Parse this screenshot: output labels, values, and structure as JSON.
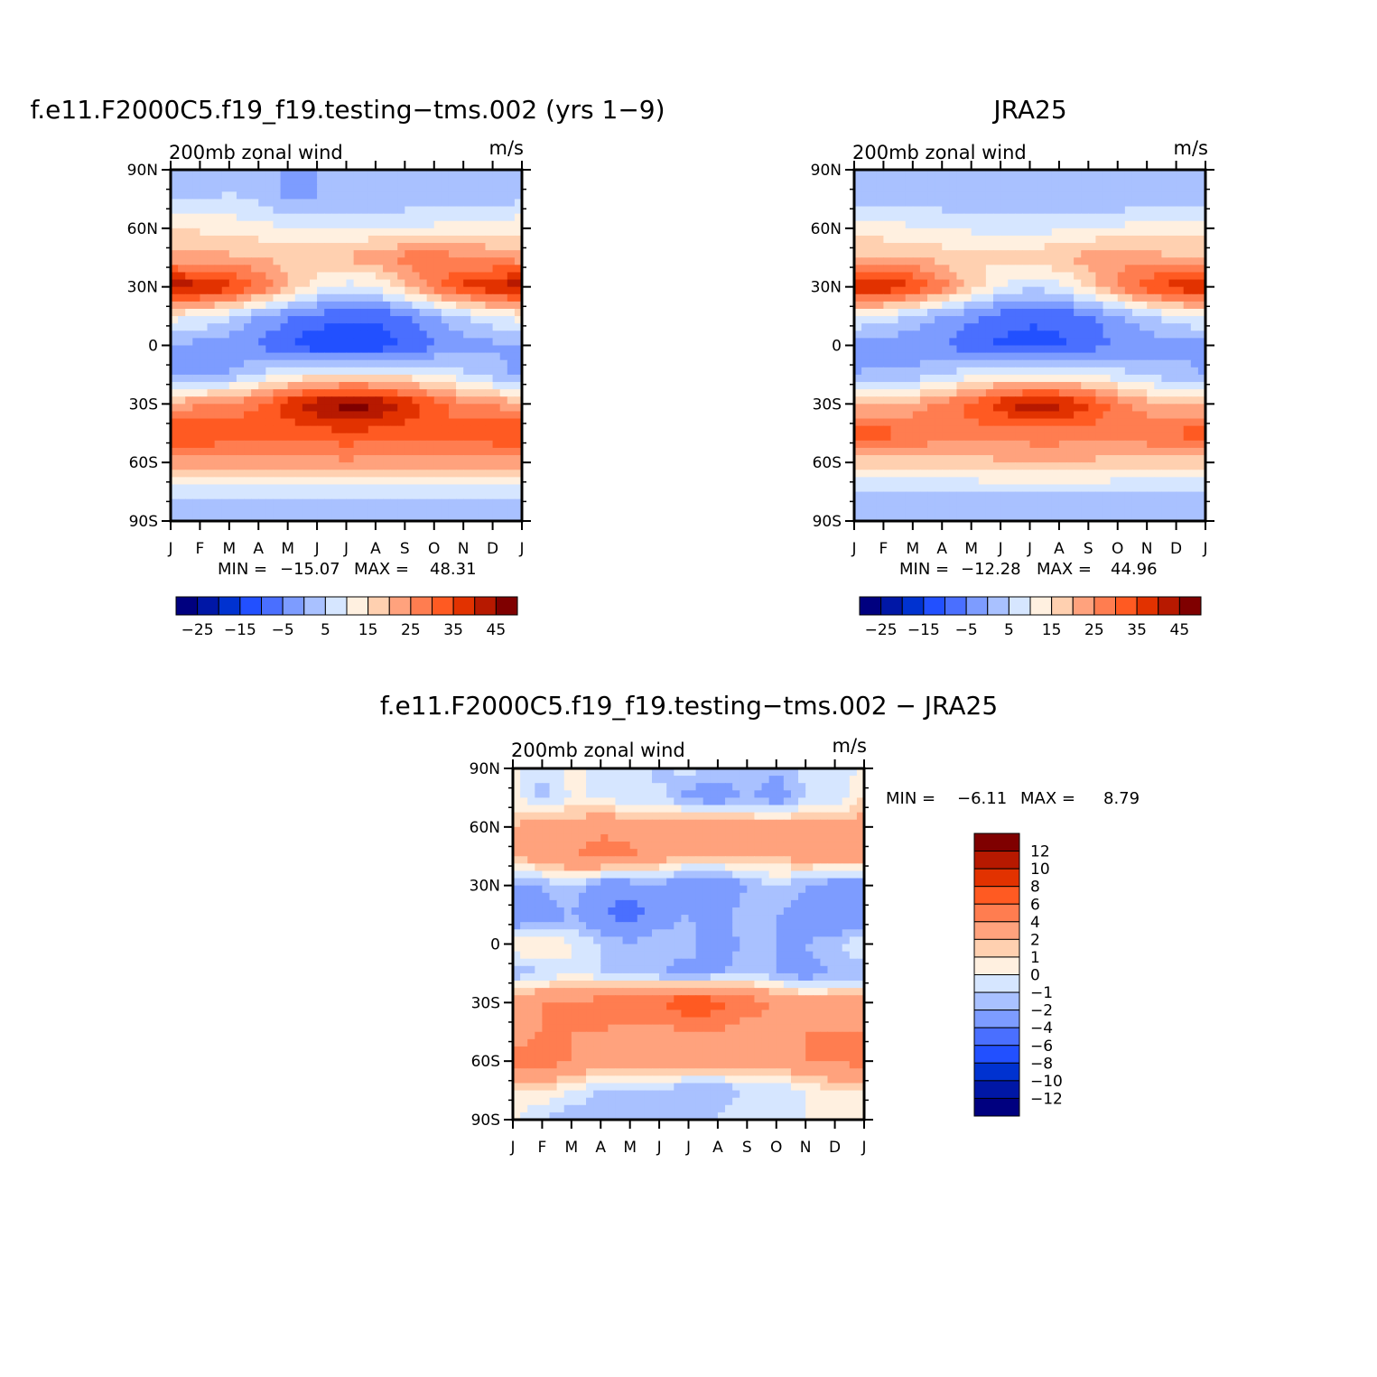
{
  "palette": {
    "diverging": [
      "#00007f",
      "#0017a6",
      "#0032d0",
      "#2250ff",
      "#4a6fff",
      "#7d9cff",
      "#a9c1ff",
      "#d6e6ff",
      "#fff0e0",
      "#ffd0b0",
      "#ffa27d",
      "#ff7d50",
      "#ff5a22",
      "#e23200",
      "#b71900",
      "#7f0000"
    ],
    "frame": "#000000"
  },
  "chart_data": [
    {
      "type": "heatmap",
      "title": "f.e11.F2000C5.f19_f19.testing−tms.002 (yrs 1−9)",
      "left_subtitle": "200mb zonal wind",
      "units": "m/s",
      "x_ticks": [
        "J",
        "F",
        "M",
        "A",
        "M",
        "J",
        "J",
        "A",
        "S",
        "O",
        "N",
        "D",
        "J"
      ],
      "y_ticks": [
        "90N",
        "60N",
        "30N",
        "0",
        "30S",
        "60S",
        "90S"
      ],
      "x_values": [
        "Jan",
        "Feb",
        "Mar",
        "Apr",
        "May",
        "Jun",
        "Jul",
        "Aug",
        "Sep",
        "Oct",
        "Nov",
        "Dec",
        "Jan"
      ],
      "y_values": [
        90,
        75,
        60,
        45,
        30,
        15,
        0,
        -15,
        -30,
        -45,
        -60,
        -75,
        -90
      ],
      "values": [
        [
          0,
          0,
          0,
          0,
          0,
          0,
          0,
          0,
          0,
          0,
          0,
          0,
          0
        ],
        [
          4,
          5,
          6,
          4,
          -1,
          0,
          1,
          1,
          2,
          2,
          3,
          3,
          4
        ],
        [
          15,
          14,
          13,
          12,
          10,
          9,
          9,
          10,
          10,
          11,
          12,
          13,
          14
        ],
        [
          22,
          22,
          21,
          20,
          19,
          20,
          21,
          24,
          27,
          28,
          26,
          24,
          22
        ],
        [
          44,
          42,
          38,
          30,
          20,
          12,
          8,
          10,
          18,
          28,
          36,
          40,
          44
        ],
        [
          12,
          10,
          6,
          0,
          -4,
          -7,
          -9,
          -9,
          -6,
          0,
          5,
          9,
          12
        ],
        [
          0,
          -2,
          -4,
          -6,
          -10,
          -14,
          -15,
          -14,
          -10,
          -6,
          -3,
          -1,
          0
        ],
        [
          -2,
          -2,
          0,
          6,
          10,
          12,
          12,
          12,
          12,
          10,
          6,
          2,
          -2
        ],
        [
          22,
          24,
          26,
          30,
          38,
          44,
          48,
          46,
          40,
          32,
          26,
          24,
          22
        ],
        [
          36,
          36,
          34,
          32,
          32,
          33,
          34,
          33,
          32,
          32,
          33,
          35,
          36
        ],
        [
          22,
          22,
          22,
          22,
          22,
          23,
          24,
          23,
          22,
          22,
          22,
          22,
          22
        ],
        [
          6,
          6,
          6,
          6,
          7,
          7,
          7,
          7,
          7,
          7,
          6,
          6,
          6
        ],
        [
          1,
          1,
          1,
          1,
          1,
          1,
          1,
          1,
          1,
          1,
          1,
          1,
          1
        ]
      ],
      "min_label": "MIN =",
      "min_value": "−15.07",
      "max_label": "MAX =",
      "max_value": "48.31",
      "colorbar": {
        "levels": [
          -30,
          -25,
          -20,
          -15,
          -10,
          -5,
          0,
          5,
          10,
          15,
          20,
          25,
          30,
          35,
          40,
          45,
          50
        ],
        "labels": [
          "−25",
          "−15",
          "−5",
          "5",
          "15",
          "25",
          "35",
          "45"
        ]
      }
    },
    {
      "type": "heatmap",
      "title": "JRA25",
      "left_subtitle": "200mb zonal wind",
      "units": "m/s",
      "x_ticks": [
        "J",
        "F",
        "M",
        "A",
        "M",
        "J",
        "J",
        "A",
        "S",
        "O",
        "N",
        "D",
        "J"
      ],
      "y_ticks": [
        "90N",
        "60N",
        "30N",
        "0",
        "30S",
        "60S",
        "90S"
      ],
      "x_values": [
        "Jan",
        "Feb",
        "Mar",
        "Apr",
        "May",
        "Jun",
        "Jul",
        "Aug",
        "Sep",
        "Oct",
        "Nov",
        "Dec",
        "Jan"
      ],
      "y_values": [
        90,
        75,
        60,
        45,
        30,
        15,
        0,
        -15,
        -30,
        -45,
        -60,
        -75,
        -90
      ],
      "values": [
        [
          0,
          0,
          0,
          0,
          0,
          0,
          0,
          0,
          0,
          0,
          0,
          0,
          0
        ],
        [
          2,
          2,
          2,
          2,
          1,
          1,
          1,
          1,
          1,
          1,
          2,
          2,
          2
        ],
        [
          13,
          12,
          11,
          10,
          9,
          8,
          8,
          9,
          10,
          11,
          12,
          13,
          13
        ],
        [
          20,
          20,
          20,
          18,
          16,
          16,
          18,
          20,
          22,
          24,
          22,
          20,
          20
        ],
        [
          42,
          40,
          36,
          28,
          18,
          10,
          6,
          8,
          16,
          26,
          34,
          38,
          42
        ],
        [
          10,
          8,
          4,
          -1,
          -4,
          -7,
          -9,
          -9,
          -6,
          -1,
          4,
          8,
          10
        ],
        [
          -2,
          -3,
          -4,
          -5,
          -8,
          -11,
          -12,
          -11,
          -8,
          -5,
          -3,
          -2,
          -2
        ],
        [
          0,
          1,
          2,
          5,
          8,
          10,
          10,
          10,
          9,
          7,
          4,
          2,
          0
        ],
        [
          18,
          20,
          22,
          26,
          32,
          38,
          44,
          42,
          36,
          28,
          22,
          19,
          18
        ],
        [
          34,
          32,
          30,
          28,
          28,
          28,
          28,
          28,
          28,
          28,
          29,
          31,
          34
        ],
        [
          18,
          18,
          18,
          18,
          18,
          19,
          20,
          20,
          19,
          18,
          18,
          18,
          18
        ],
        [
          4,
          4,
          4,
          4,
          5,
          5,
          5,
          5,
          5,
          5,
          4,
          4,
          4
        ],
        [
          0,
          0,
          0,
          0,
          0,
          0,
          0,
          0,
          0,
          0,
          0,
          0,
          0
        ]
      ],
      "min_label": "MIN =",
      "min_value": "−12.28",
      "max_label": "MAX =",
      "max_value": "44.96",
      "colorbar": {
        "levels": [
          -30,
          -25,
          -20,
          -15,
          -10,
          -5,
          0,
          5,
          10,
          15,
          20,
          25,
          30,
          35,
          40,
          45,
          50
        ],
        "labels": [
          "−25",
          "−15",
          "−5",
          "5",
          "15",
          "25",
          "35",
          "45"
        ]
      }
    },
    {
      "type": "heatmap",
      "title": "f.e11.F2000C5.f19_f19.testing−tms.002 − JRA25",
      "left_subtitle": "200mb zonal wind",
      "units": "m/s",
      "x_ticks": [
        "J",
        "F",
        "M",
        "A",
        "M",
        "J",
        "J",
        "A",
        "S",
        "O",
        "N",
        "D",
        "J"
      ],
      "y_ticks": [
        "90N",
        "60N",
        "30N",
        "0",
        "30S",
        "60S",
        "90S"
      ],
      "x_values": [
        "Jan",
        "Feb",
        "Mar",
        "Apr",
        "May",
        "Jun",
        "Jul",
        "Aug",
        "Sep",
        "Oct",
        "Nov",
        "Dec",
        "Jan"
      ],
      "y_values": [
        90,
        75,
        60,
        45,
        30,
        15,
        0,
        -15,
        -30,
        -45,
        -60,
        -75,
        -90
      ],
      "values": [
        [
          0.5,
          -1,
          0.5,
          -0.5,
          0,
          -1.5,
          -0.5,
          -1.5,
          -1,
          -2,
          -0.5,
          -1,
          0.5
        ],
        [
          0.5,
          -1.5,
          0,
          0,
          -1,
          -0.5,
          -2.5,
          -3,
          -2,
          -3,
          -1,
          -1,
          1
        ],
        [
          2,
          3,
          3,
          3.5,
          3.5,
          3,
          3.5,
          3.5,
          3,
          3,
          2.5,
          3,
          3
        ],
        [
          2,
          3,
          4,
          5,
          4.5,
          3,
          2,
          2,
          2,
          2,
          3,
          3,
          3
        ],
        [
          -2,
          -2,
          -1,
          -3,
          -3,
          -2,
          -4,
          -4,
          -2,
          -1,
          -2,
          -3,
          -3
        ],
        [
          -4,
          -3,
          -2,
          -4,
          -5,
          -3,
          -2,
          -3,
          -1,
          -2,
          -3,
          -4,
          -4
        ],
        [
          1,
          1,
          0,
          -1,
          -2,
          -1,
          -1,
          -4,
          -1,
          -2,
          -2,
          -1,
          0
        ],
        [
          -2,
          -1,
          0,
          -1,
          -2,
          -2,
          -3,
          -2,
          -1,
          -2,
          -3,
          -2,
          -2
        ],
        [
          3,
          4,
          4,
          5,
          6,
          6,
          8,
          7,
          5,
          4,
          3,
          3,
          3
        ],
        [
          3,
          4,
          4,
          4,
          3,
          3,
          4,
          4,
          3,
          3,
          4,
          4,
          4
        ],
        [
          5,
          5,
          4,
          3,
          3,
          3,
          3,
          3,
          3,
          3,
          4,
          4,
          5
        ],
        [
          1,
          1,
          0,
          -1,
          -1,
          -1,
          -2,
          -2,
          -1,
          -1,
          0,
          1,
          1
        ],
        [
          0,
          -1,
          -2,
          -2,
          -2,
          -2,
          -1,
          -1,
          0,
          0,
          0,
          0,
          1
        ]
      ],
      "min_label": "MIN =",
      "min_value": "−6.11",
      "max_label": "MAX =",
      "max_value": "8.79",
      "colorbar": {
        "levels": [
          -14,
          -12,
          -10,
          -8,
          -6,
          -4,
          -2,
          -1,
          0,
          1,
          2,
          4,
          6,
          8,
          10,
          12,
          14
        ],
        "labels": [
          "−12",
          "−10",
          "−8",
          "−6",
          "−4",
          "−2",
          "−1",
          "0",
          "1",
          "2",
          "4",
          "6",
          "8",
          "10",
          "12"
        ]
      }
    }
  ]
}
